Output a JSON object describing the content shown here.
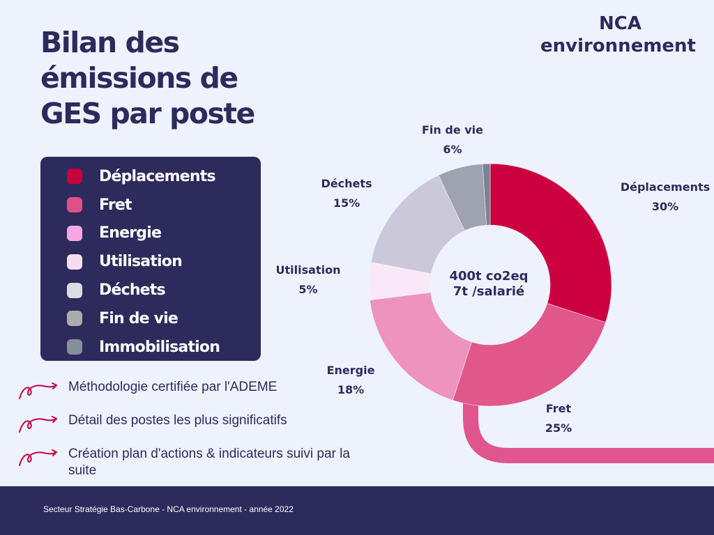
{
  "title": "Bilan des émissions de GES par poste",
  "brand": {
    "line1": "NCA",
    "line2": "environnement"
  },
  "legend": {
    "items": [
      {
        "label": "Déplacements",
        "color": "#c8003f"
      },
      {
        "label": "Fret",
        "color": "#df4f88"
      },
      {
        "label": "Energie",
        "color": "#f9a6e6"
      },
      {
        "label": "Utilisation",
        "color": "#f7dcef"
      },
      {
        "label": "Déchets",
        "color": "#dcdce4"
      },
      {
        "label": "Fin de vie",
        "color": "#ababb0"
      },
      {
        "label": "Immobilisation",
        "color": "#86909c"
      }
    ]
  },
  "bullets": [
    {
      "text": "Méthodologie certifiée par l'ADEME"
    },
    {
      "text": "Détail des postes les plus significatifs"
    },
    {
      "text": "Création plan d'actions & indicateurs suivi par la suite"
    }
  ],
  "footer": {
    "text": "Secteur Stratégie Bas-Carbone - NCA environnement - année 2022"
  },
  "chart_data": {
    "type": "pie",
    "variant": "donut",
    "center_text": [
      "400t co2eq",
      "7t /salarié"
    ],
    "slices": [
      {
        "name": "Déplacements",
        "value": 30,
        "label": "30%",
        "color": "#cc0040"
      },
      {
        "name": "Fret",
        "value": 25,
        "label": "25%",
        "color": "#e2578a"
      },
      {
        "name": "Energie",
        "value": 18,
        "label": "18%",
        "color": "#ee93bd"
      },
      {
        "name": "Utilisation",
        "value": 5,
        "label": "5%",
        "color": "#fbe8f7"
      },
      {
        "name": "Déchets",
        "value": 15,
        "label": "15%",
        "color": "#cbc8da"
      },
      {
        "name": "Fin de vie",
        "value": 6,
        "label": "6%",
        "color": "#9ea3b2"
      },
      {
        "name": "Immobilisation",
        "value": 1,
        "label": "",
        "color": "#7b8592"
      }
    ],
    "connector_color": "#e0558c"
  }
}
